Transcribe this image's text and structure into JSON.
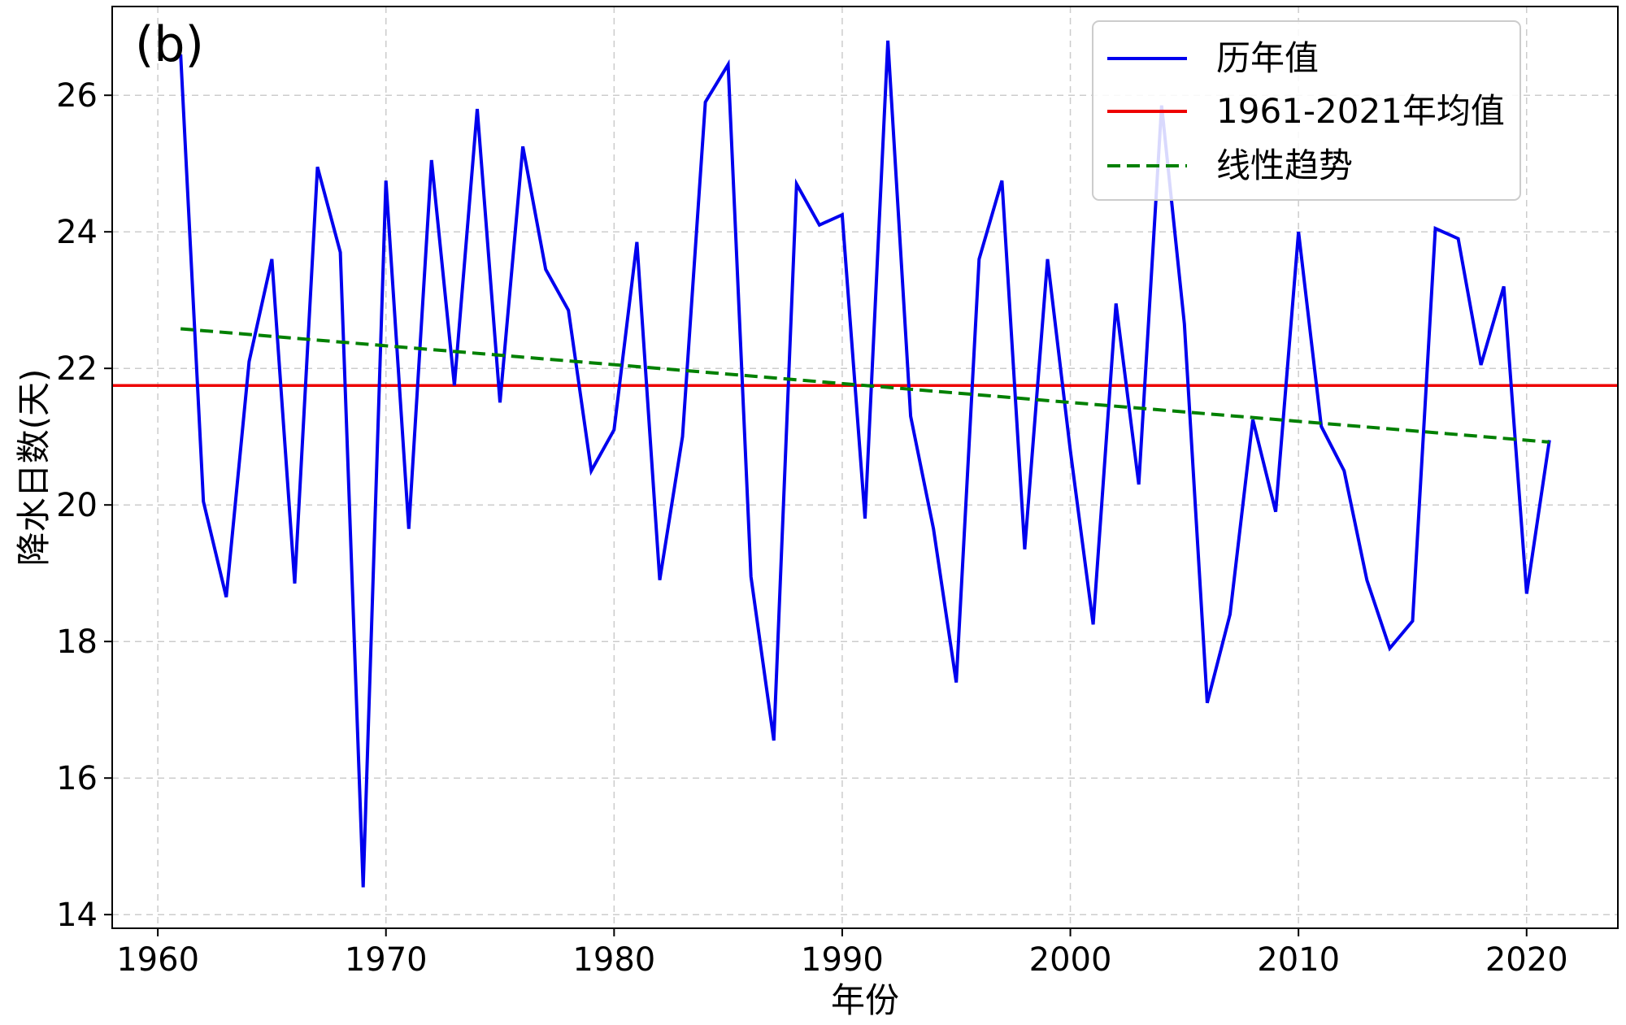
{
  "chart_data": {
    "type": "line",
    "panel_label": "(b)",
    "xlabel": "年份",
    "ylabel": "降水日数(天)",
    "xlim": [
      1958,
      2024
    ],
    "ylim": [
      13.8,
      27.3
    ],
    "xticks": [
      1960,
      1970,
      1980,
      1990,
      2000,
      2010,
      2020
    ],
    "yticks": [
      14,
      16,
      18,
      20,
      22,
      24,
      26
    ],
    "grid": true,
    "legend_position": "top-right",
    "series": [
      {
        "name": "历年值",
        "color": "#0000ee",
        "style": "solid",
        "x": [
          1961,
          1962,
          1963,
          1964,
          1965,
          1966,
          1967,
          1968,
          1969,
          1970,
          1971,
          1972,
          1973,
          1974,
          1975,
          1976,
          1977,
          1978,
          1979,
          1980,
          1981,
          1982,
          1983,
          1984,
          1985,
          1986,
          1987,
          1988,
          1989,
          1990,
          1991,
          1992,
          1993,
          1994,
          1995,
          1996,
          1997,
          1998,
          1999,
          2000,
          2001,
          2002,
          2003,
          2004,
          2005,
          2006,
          2007,
          2008,
          2009,
          2010,
          2011,
          2012,
          2013,
          2014,
          2015,
          2016,
          2017,
          2018,
          2019,
          2020,
          2021
        ],
        "y": [
          26.6,
          20.05,
          18.65,
          22.1,
          23.6,
          18.85,
          24.95,
          23.7,
          14.4,
          24.75,
          19.65,
          25.05,
          21.75,
          25.8,
          21.5,
          25.25,
          23.45,
          22.85,
          20.5,
          21.1,
          23.85,
          18.9,
          21.0,
          25.9,
          26.45,
          18.95,
          16.55,
          24.7,
          24.1,
          24.25,
          19.8,
          26.8,
          21.3,
          19.65,
          17.4,
          23.6,
          24.75,
          19.35,
          23.6,
          20.8,
          18.25,
          22.95,
          20.3,
          25.85,
          22.65,
          17.1,
          18.4,
          21.25,
          19.9,
          24.0,
          21.15,
          20.5,
          18.9,
          17.9,
          18.3,
          24.05,
          23.9,
          22.05,
          23.2,
          18.7,
          20.95
        ]
      },
      {
        "name": "1961-2021年均值",
        "color": "#ee0000",
        "style": "solid",
        "value": 21.75
      },
      {
        "name": "线性趋势",
        "color": "#008000",
        "style": "dashed",
        "x": [
          1961,
          2021
        ],
        "y": [
          22.58,
          20.92
        ]
      }
    ]
  }
}
